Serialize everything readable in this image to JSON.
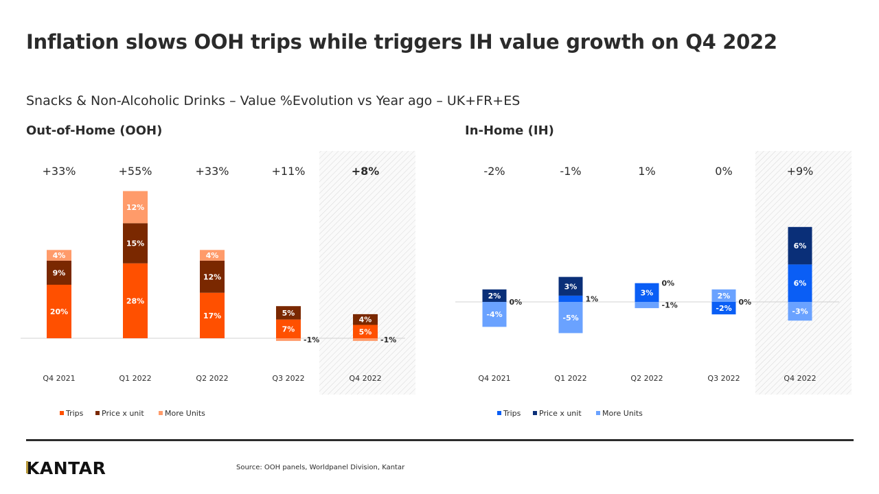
{
  "title": "Inflation slows OOH trips while triggers IH value growth on Q4 2022",
  "subtitle": "Snacks & Non-Alcoholic Drinks – Value %Evolution vs Year ago – UK+FR+ES",
  "source": "Source: OOH panels, Worldpanel Division, Kantar",
  "logo": "KANTAR",
  "chart_data": [
    {
      "type": "bar",
      "stacked": true,
      "title": "Out-of-Home (OOH)",
      "categories": [
        "Q4 2021",
        "Q1 2022",
        "Q2 2022",
        "Q3 2022",
        "Q4 2022"
      ],
      "totals": [
        "+33%",
        "+55%",
        "+33%",
        "+11%",
        "+8%"
      ],
      "highlighted_category": "Q4 2022",
      "series": [
        {
          "name": "Trips",
          "color": "#FF5000",
          "values": [
            20,
            28,
            17,
            7,
            5
          ]
        },
        {
          "name": "Price x unit",
          "color": "#7A2800",
          "values": [
            9,
            15,
            12,
            5,
            4
          ]
        },
        {
          "name": "More Units",
          "color": "#FF9B6A",
          "values": [
            4,
            12,
            4,
            -1,
            -1
          ]
        }
      ],
      "legend": "bottom",
      "grid": false
    },
    {
      "type": "bar",
      "stacked": true,
      "title": "In-Home (IH)",
      "categories": [
        "Q4 2021",
        "Q1 2022",
        "Q2 2022",
        "Q3 2022",
        "Q4 2022"
      ],
      "totals": [
        "-2%",
        "-1%",
        "1%",
        "0%",
        "+9%"
      ],
      "highlighted_category": "Q4 2022",
      "series": [
        {
          "name": "Trips",
          "color": "#0A5EF5",
          "values": [
            0,
            1,
            3,
            -2,
            6
          ]
        },
        {
          "name": "Price x unit",
          "color": "#0A2F78",
          "values": [
            2,
            3,
            0,
            0,
            6
          ]
        },
        {
          "name": "More Units",
          "color": "#6AA2FF",
          "values": [
            -4,
            -5,
            -1,
            2,
            -3
          ]
        }
      ],
      "legend": "bottom",
      "grid": false
    }
  ]
}
